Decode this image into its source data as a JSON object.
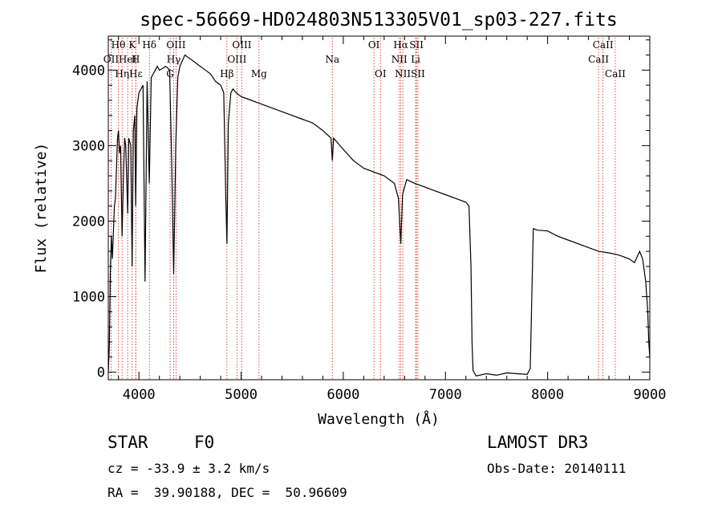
{
  "chart_data": {
    "type": "line",
    "title": "spec-56669-HD024803N513305V01_sp03-227.fits",
    "xlabel": "Wavelength (Å)",
    "ylabel": "Flux (relative)",
    "xlim": [
      3700,
      9000
    ],
    "ylim": [
      -100,
      4450
    ],
    "xticks": [
      4000,
      5000,
      6000,
      7000,
      8000,
      9000
    ],
    "yticks": [
      0,
      1000,
      2000,
      3000,
      4000
    ],
    "xtick_labels": [
      "4000",
      "5000",
      "6000",
      "7000",
      "8000",
      "9000"
    ],
    "ytick_labels": [
      "0",
      "1000",
      "2000",
      "3000",
      "4000"
    ],
    "series": [
      {
        "name": "flux",
        "x": [
          3700,
          3710,
          3720,
          3730,
          3740,
          3760,
          3770,
          3790,
          3800,
          3810,
          3820,
          3835,
          3850,
          3860,
          3870,
          3890,
          3900,
          3920,
          3933,
          3945,
          3960,
          3968,
          3980,
          4000,
          4020,
          4040,
          4060,
          4080,
          4101,
          4120,
          4140,
          4160,
          4180,
          4200,
          4230,
          4260,
          4280,
          4300,
          4320,
          4340,
          4360,
          4380,
          4400,
          4450,
          4500,
          4550,
          4600,
          4650,
          4700,
          4750,
          4800,
          4830,
          4850,
          4861,
          4875,
          4900,
          4920,
          4950,
          5000,
          5100,
          5200,
          5300,
          5400,
          5500,
          5600,
          5700,
          5800,
          5880,
          5893,
          5905,
          6000,
          6100,
          6200,
          6300,
          6400,
          6500,
          6540,
          6563,
          6580,
          6620,
          6700,
          6800,
          6900,
          7000,
          7100,
          7200,
          7230,
          7250,
          7260,
          7270,
          7300,
          7400,
          7500,
          7600,
          7700,
          7800,
          7830,
          7845,
          7860,
          7900,
          8000,
          8100,
          8200,
          8300,
          8400,
          8500,
          8600,
          8700,
          8800,
          8850,
          8900,
          8930,
          8960,
          8980,
          8990,
          9000
        ],
        "y": [
          0,
          350,
          1300,
          1800,
          1500,
          2200,
          2300,
          3100,
          3200,
          2900,
          3000,
          1800,
          2700,
          3100,
          3000,
          2100,
          3100,
          3000,
          1400,
          3200,
          3400,
          2200,
          3500,
          3700,
          3750,
          3800,
          1200,
          3850,
          2500,
          3900,
          3950,
          4000,
          4050,
          4000,
          4020,
          4050,
          4030,
          4000,
          2800,
          1300,
          3000,
          3900,
          4050,
          4200,
          4150,
          4100,
          4050,
          4000,
          3950,
          3850,
          3800,
          3700,
          2300,
          1700,
          3300,
          3700,
          3750,
          3700,
          3650,
          3600,
          3550,
          3500,
          3450,
          3400,
          3350,
          3300,
          3200,
          3100,
          2800,
          3100,
          2950,
          2800,
          2700,
          2650,
          2600,
          2500,
          2300,
          1700,
          2350,
          2550,
          2500,
          2450,
          2400,
          2350,
          2300,
          2250,
          2200,
          1400,
          400,
          20,
          -50,
          -20,
          -40,
          -10,
          -20,
          -30,
          50,
          1000,
          1900,
          1880,
          1870,
          1800,
          1750,
          1700,
          1650,
          1600,
          1580,
          1550,
          1500,
          1450,
          1600,
          1500,
          1200,
          800,
          400,
          200
        ]
      }
    ],
    "spectral_lines": [
      {
        "name": "Hθ",
        "x": 3798,
        "row": 0
      },
      {
        "name": "K",
        "x": 3934,
        "row": 0
      },
      {
        "name": "Hδ",
        "x": 4102,
        "row": 0
      },
      {
        "name": "OIII",
        "x": 4363,
        "row": 0
      },
      {
        "name": "OIII",
        "x": 5007,
        "row": 0
      },
      {
        "name": "OI",
        "x": 6300,
        "row": 0
      },
      {
        "name": "Hα",
        "x": 6563,
        "row": 0
      },
      {
        "name": "SII",
        "x": 6716,
        "row": 0
      },
      {
        "name": "CaII",
        "x": 8542,
        "row": 0
      },
      {
        "name": "OII",
        "x": 3727,
        "row": 1
      },
      {
        "name": "HeI",
        "x": 3889,
        "row": 1
      },
      {
        "name": "H",
        "x": 3968,
        "row": 1
      },
      {
        "name": "Hγ",
        "x": 4340,
        "row": 1
      },
      {
        "name": "OIII",
        "x": 4959,
        "row": 1
      },
      {
        "name": "Na",
        "x": 5893,
        "row": 1
      },
      {
        "name": "NII",
        "x": 6548,
        "row": 1
      },
      {
        "name": "Li",
        "x": 6708,
        "row": 1
      },
      {
        "name": "CaII",
        "x": 8498,
        "row": 1
      },
      {
        "name": "Hη",
        "x": 3835,
        "row": 2
      },
      {
        "name": "Hε",
        "x": 3970,
        "row": 2
      },
      {
        "name": "G",
        "x": 4305,
        "row": 2
      },
      {
        "name": "Hβ",
        "x": 4861,
        "row": 2
      },
      {
        "name": "Mg",
        "x": 5175,
        "row": 2
      },
      {
        "name": "OI",
        "x": 6364,
        "row": 2
      },
      {
        "name": "NII",
        "x": 6583,
        "row": 2
      },
      {
        "name": "SII",
        "x": 6731,
        "row": 2
      },
      {
        "name": "CaII",
        "x": 8662,
        "row": 2
      }
    ]
  },
  "info": {
    "object_class": "STAR",
    "subclass": "F0",
    "survey": "LAMOST DR3",
    "cz": "cz = -33.9 ± 3.2 km/s",
    "obs_date": "Obs-Date: 20140111",
    "coords": "RA =  39.90188, DEC =  50.96609"
  },
  "colors": {
    "axis": "#000000",
    "spectrum": "#000000",
    "line_marker": "#cc2222"
  }
}
